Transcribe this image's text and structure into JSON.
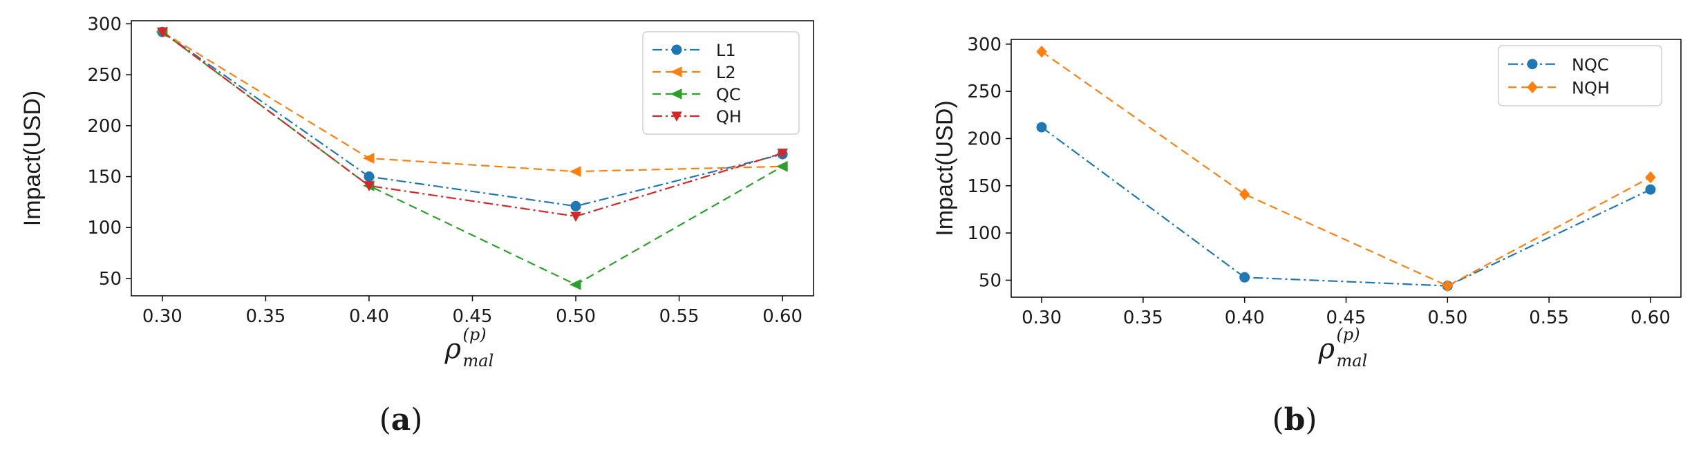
{
  "chart_data": [
    {
      "type": "line",
      "panel_label": "(a)",
      "panel_letter": "a",
      "ylabel": "Impact(USD)",
      "xlabel": {
        "base": "ρ",
        "superscript": "(p)",
        "subscript": "mal"
      },
      "x": [
        0.3,
        0.4,
        0.5,
        0.6
      ],
      "xticks": [
        "0.30",
        "0.35",
        "0.40",
        "0.45",
        "0.50",
        "0.55",
        "0.60"
      ],
      "xtick_values": [
        0.3,
        0.35,
        0.4,
        0.45,
        0.5,
        0.55,
        0.6
      ],
      "xlim": [
        0.285,
        0.615
      ],
      "yticks": [
        "50",
        "100",
        "150",
        "200",
        "250",
        "300"
      ],
      "ytick_values": [
        50,
        100,
        150,
        200,
        250,
        300
      ],
      "ylim": [
        33,
        303
      ],
      "grid": false,
      "legend_position": "top-right",
      "series": [
        {
          "name": "L1",
          "values": [
            292,
            150,
            121,
            172
          ],
          "color": "#1f77b4",
          "dash": "dashdot",
          "marker": "circle"
        },
        {
          "name": "L2",
          "values": [
            292,
            168,
            155,
            160
          ],
          "color": "#ff7f0e",
          "dash": "dashed",
          "marker": "triangle-left"
        },
        {
          "name": "QC",
          "values": [
            292,
            141,
            44,
            160
          ],
          "color": "#2ca02c",
          "dash": "dashed",
          "marker": "triangle-left"
        },
        {
          "name": "QH",
          "values": [
            292,
            141,
            111,
            173
          ],
          "color": "#d62728",
          "dash": "dashdot",
          "marker": "triangle-down"
        }
      ]
    },
    {
      "type": "line",
      "panel_label": "(b)",
      "panel_letter": "b",
      "ylabel": "Impact(USD)",
      "xlabel": {
        "base": "ρ",
        "superscript": "(p)",
        "subscript": "mal"
      },
      "x": [
        0.3,
        0.4,
        0.5,
        0.6
      ],
      "xticks": [
        "0.30",
        "0.35",
        "0.40",
        "0.45",
        "0.50",
        "0.55",
        "0.60"
      ],
      "xtick_values": [
        0.3,
        0.35,
        0.4,
        0.45,
        0.5,
        0.55,
        0.6
      ],
      "xlim": [
        0.285,
        0.615
      ],
      "yticks": [
        "50",
        "100",
        "150",
        "200",
        "250",
        "300"
      ],
      "ytick_values": [
        50,
        100,
        150,
        200,
        250,
        300
      ],
      "ylim": [
        32,
        305
      ],
      "grid": false,
      "legend_position": "top-right",
      "series": [
        {
          "name": "NQC",
          "values": [
            212,
            53,
            44,
            146
          ],
          "color": "#1f77b4",
          "dash": "dashdot",
          "marker": "circle"
        },
        {
          "name": "NQH",
          "values": [
            292,
            141,
            44,
            159
          ],
          "color": "#ff7f0e",
          "dash": "dashed",
          "marker": "diamond"
        }
      ]
    }
  ]
}
